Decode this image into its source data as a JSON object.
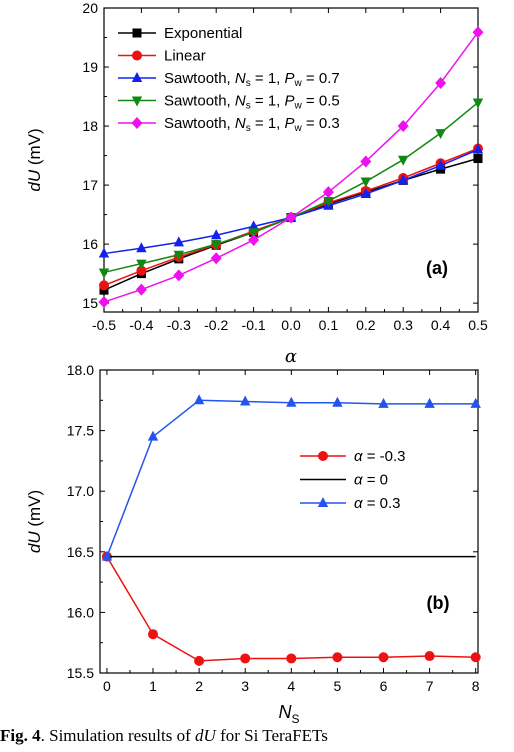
{
  "chart_data": [
    {
      "type": "line",
      "panel_label": "(a)",
      "xlabel": "α",
      "ylabel": "dU (mV)",
      "x": [
        -0.5,
        -0.4,
        -0.3,
        -0.2,
        -0.1,
        0.0,
        0.1,
        0.2,
        0.3,
        0.4,
        0.5
      ],
      "xlim": [
        -0.5,
        0.5
      ],
      "ylim": [
        14.85,
        20
      ],
      "xticks": [
        "-0.5",
        "-0.4",
        "-0.3",
        "-0.2",
        "-0.1",
        "0.0",
        "0.1",
        "0.2",
        "0.3",
        "0.4",
        "0.5"
      ],
      "yticks": [
        15,
        16,
        17,
        18,
        19,
        20
      ],
      "legend_position": "top-left",
      "grid": false,
      "series": [
        {
          "name": "Exponential",
          "color": "#000000",
          "marker": "square",
          "values": [
            15.22,
            15.5,
            15.75,
            15.98,
            16.2,
            16.45,
            16.68,
            16.88,
            17.08,
            17.27,
            17.45
          ]
        },
        {
          "name": "Linear",
          "color": "#ee1111",
          "marker": "circle",
          "values": [
            15.3,
            15.55,
            15.78,
            15.99,
            16.22,
            16.45,
            16.7,
            16.9,
            17.12,
            17.37,
            17.62
          ]
        },
        {
          "name": "Sawtooth, Ns = 1, Pw = 0.7",
          "color": "#1122ee",
          "marker": "triangle-up",
          "values": [
            15.84,
            15.93,
            16.03,
            16.15,
            16.3,
            16.45,
            16.65,
            16.85,
            17.08,
            17.33,
            17.6
          ]
        },
        {
          "name": "Sawtooth, Ns = 1, Pw = 0.5",
          "color": "#118811",
          "marker": "triangle-down",
          "values": [
            15.52,
            15.67,
            15.82,
            16.0,
            16.2,
            16.45,
            16.73,
            17.06,
            17.43,
            17.88,
            18.4
          ]
        },
        {
          "name": "Sawtooth, Ns = 1, Pw = 0.3",
          "color": "#ee11ee",
          "marker": "diamond",
          "values": [
            15.02,
            15.23,
            15.47,
            15.76,
            16.07,
            16.45,
            16.88,
            17.4,
            18.0,
            18.73,
            19.59
          ]
        }
      ],
      "legend_labels": [
        {
          "text": "Exponential"
        },
        {
          "text": "Linear"
        },
        {
          "text": "Sawtooth, ",
          "var": "N",
          "sub": "s",
          "mid": " = 1, ",
          "var2": "P",
          "sub2": "w",
          "tail": " = 0.7"
        },
        {
          "text": "Sawtooth, ",
          "var": "N",
          "sub": "s",
          "mid": " = 1, ",
          "var2": "P",
          "sub2": "w",
          "tail": " = 0.5"
        },
        {
          "text": "Sawtooth, ",
          "var": "N",
          "sub": "s",
          "mid": " = 1, ",
          "var2": "P",
          "sub2": "w",
          "tail": " = 0.3"
        }
      ]
    },
    {
      "type": "line",
      "panel_label": "(b)",
      "xlabel": "NS",
      "ylabel": "dU (mV)",
      "x": [
        0,
        1,
        2,
        3,
        4,
        5,
        6,
        7,
        8
      ],
      "xlim": [
        -0.15,
        8.05
      ],
      "ylim": [
        15.5,
        18.0
      ],
      "xticks": [
        "0",
        "1",
        "2",
        "3",
        "4",
        "5",
        "6",
        "7",
        "8"
      ],
      "yticks": [
        "15.5",
        "16.0",
        "16.5",
        "17.0",
        "17.5",
        "18.0"
      ],
      "legend_position": "center-right",
      "grid": false,
      "series": [
        {
          "name": "α = -0.3",
          "color": "#ee1111",
          "marker": "circle",
          "values": [
            16.46,
            15.82,
            15.6,
            15.62,
            15.62,
            15.63,
            15.63,
            15.64,
            15.63
          ]
        },
        {
          "name": "α = 0",
          "color": "#000000",
          "marker": "none",
          "values": [
            16.46,
            16.46,
            16.46,
            16.46,
            16.46,
            16.46,
            16.46,
            16.46,
            16.46
          ]
        },
        {
          "name": "α = 0.3",
          "color": "#2255ee",
          "marker": "triangle-up",
          "values": [
            16.46,
            17.45,
            17.75,
            17.74,
            17.73,
            17.73,
            17.72,
            17.72,
            17.72
          ]
        }
      ],
      "legend_labels": [
        {
          "var": "α",
          "tail": " = -0.3"
        },
        {
          "var": "α",
          "tail": " = 0"
        },
        {
          "var": "α",
          "tail": " = 0.3"
        }
      ]
    }
  ],
  "caption": {
    "label": "Fig. 4",
    "text_before": ". Simulation results of ",
    "var": "dU",
    "text_after": " for Si TeraFETs"
  }
}
